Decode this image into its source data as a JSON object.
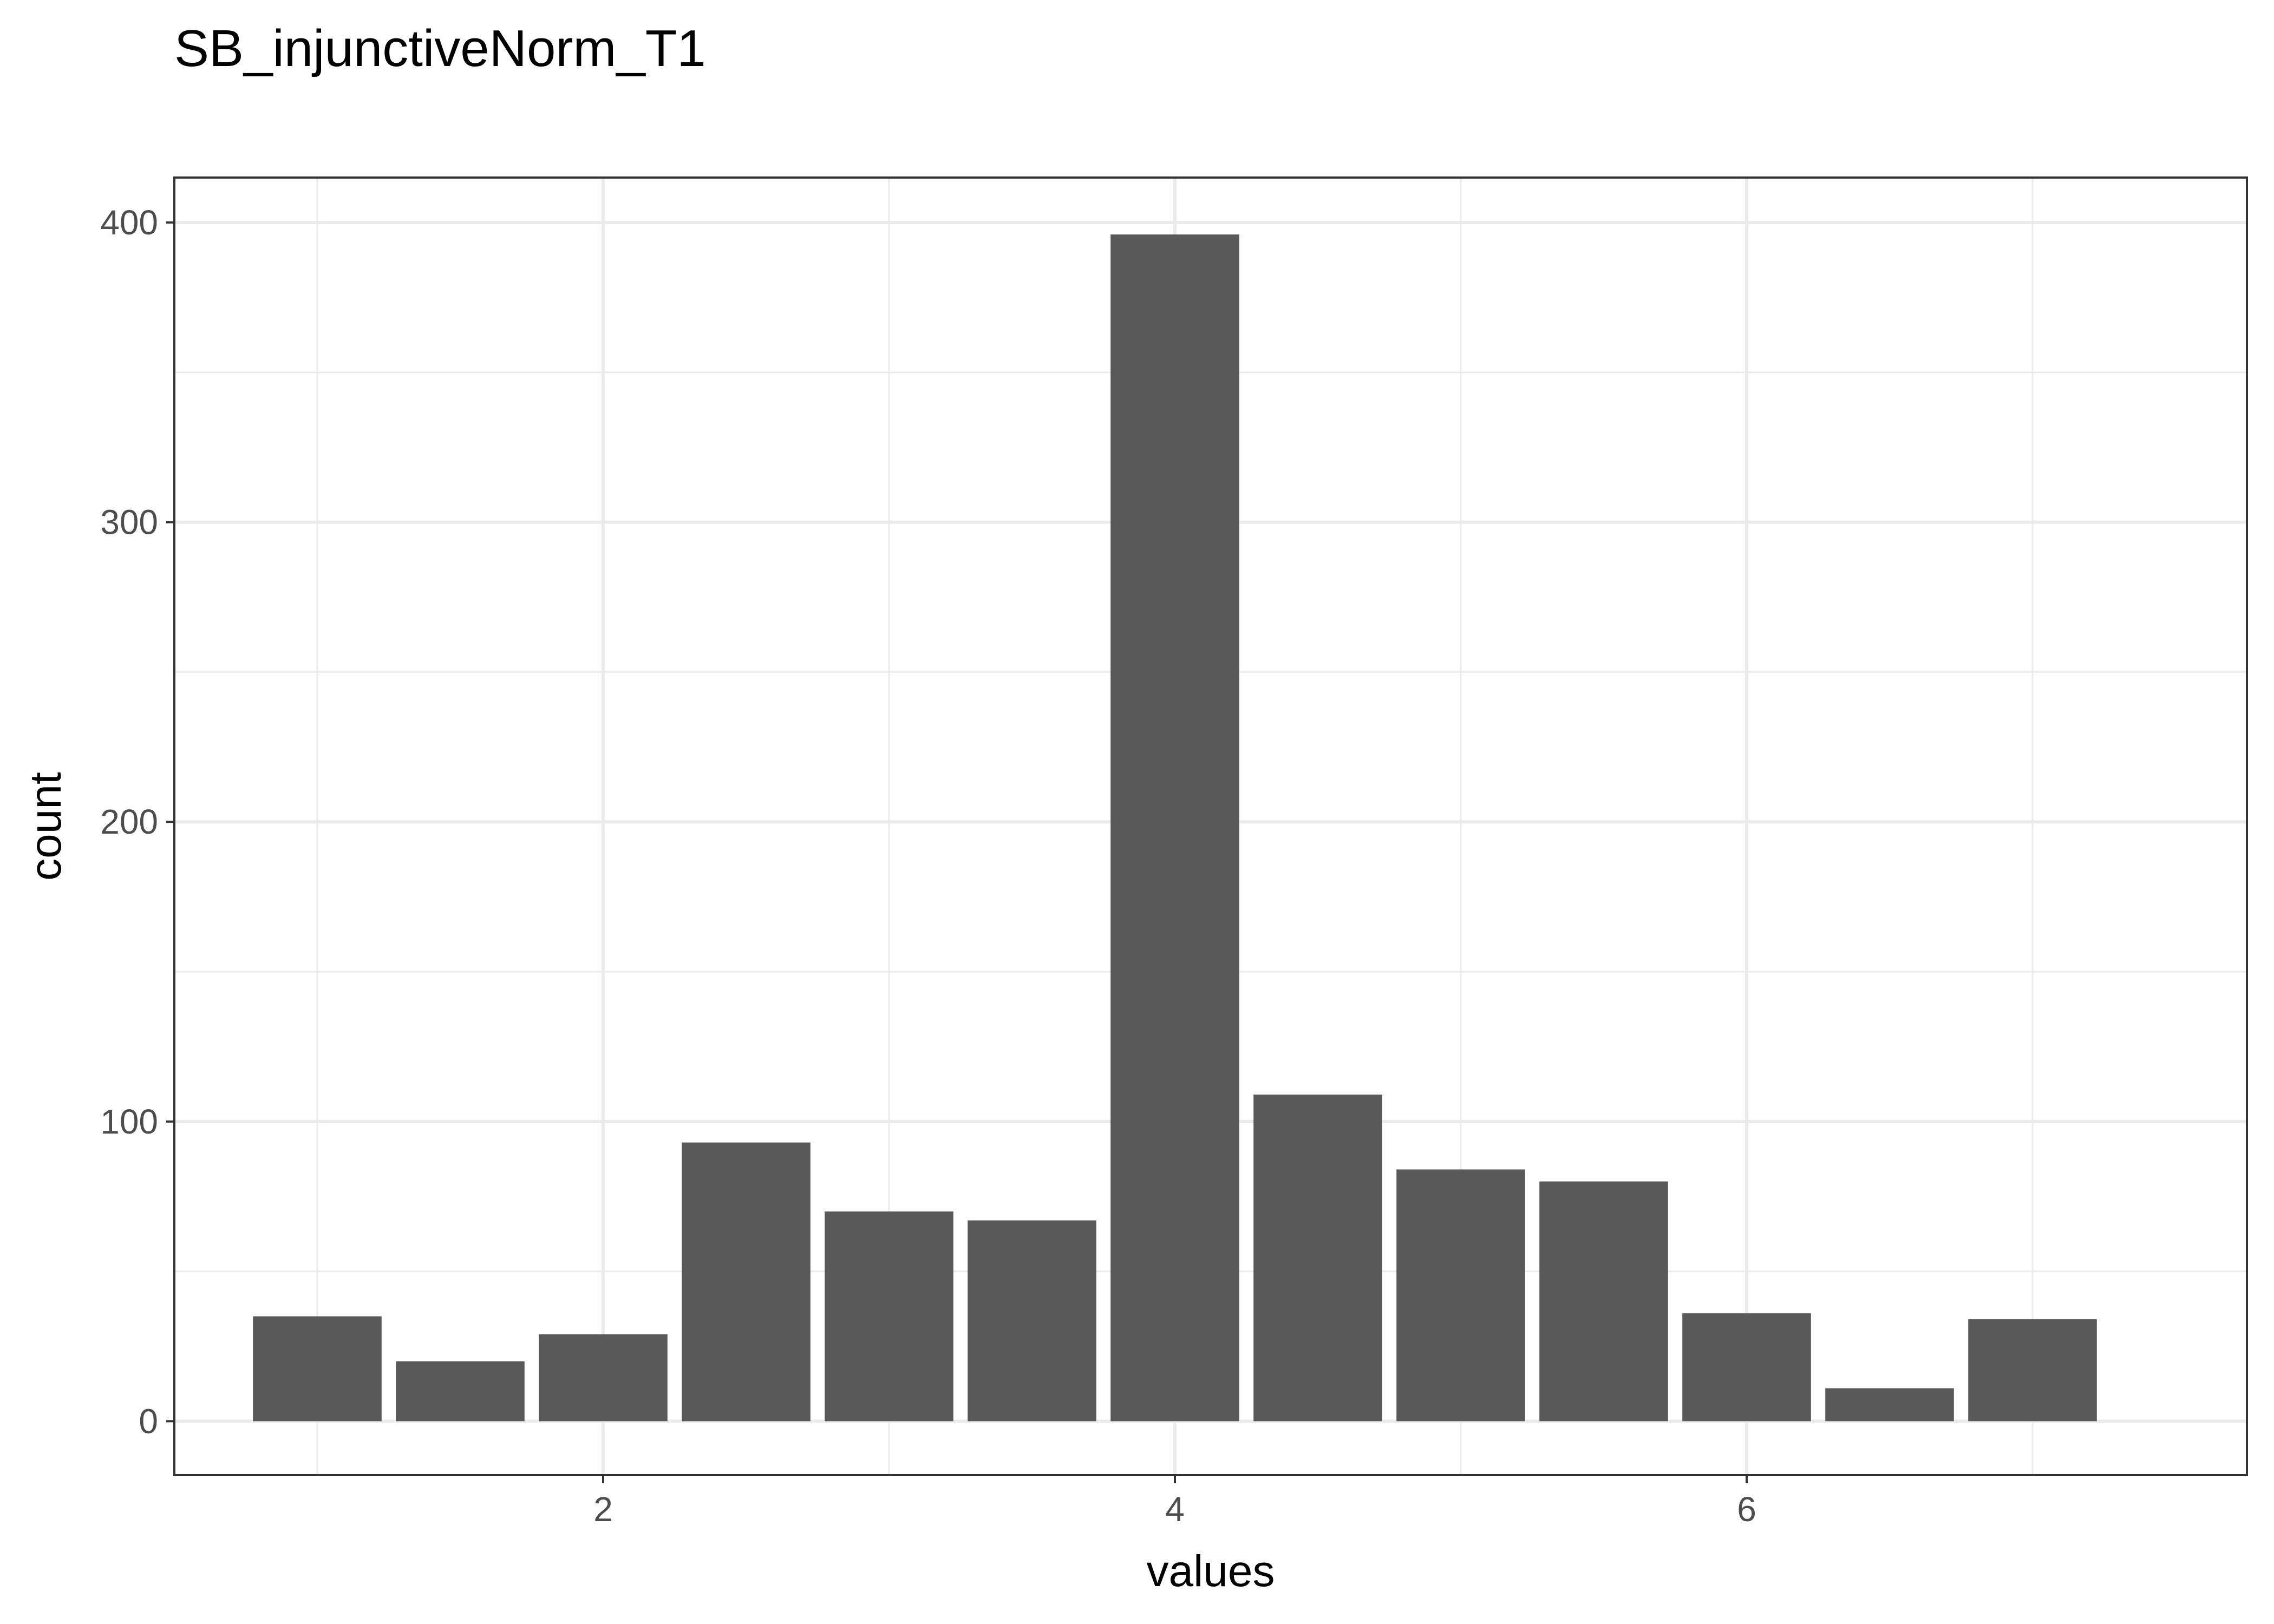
{
  "chart_data": {
    "type": "bar",
    "title": "SB_injunctiveNorm_T1",
    "xlabel": "values",
    "ylabel": "count",
    "bin_width": 0.5,
    "x": [
      1.0,
      1.5,
      2.0,
      2.5,
      3.0,
      3.5,
      4.0,
      4.5,
      5.0,
      5.5,
      6.0,
      6.5,
      7.0
    ],
    "values": [
      35,
      20,
      29,
      93,
      70,
      67,
      396,
      109,
      84,
      80,
      36,
      11,
      34
    ],
    "xlim": [
      0.5,
      7.75
    ],
    "ylim": [
      -18,
      415
    ],
    "x_ticks": [
      2,
      4,
      6
    ],
    "y_ticks": [
      0,
      100,
      200,
      300,
      400
    ],
    "x_minor_ticks": [
      1,
      3,
      5,
      7
    ],
    "y_minor_ticks": [
      50,
      150,
      250,
      350
    ],
    "grid": true,
    "bar_color": "#595959",
    "grid_color": "#ebebeb",
    "panel_border_color": "#333333"
  }
}
